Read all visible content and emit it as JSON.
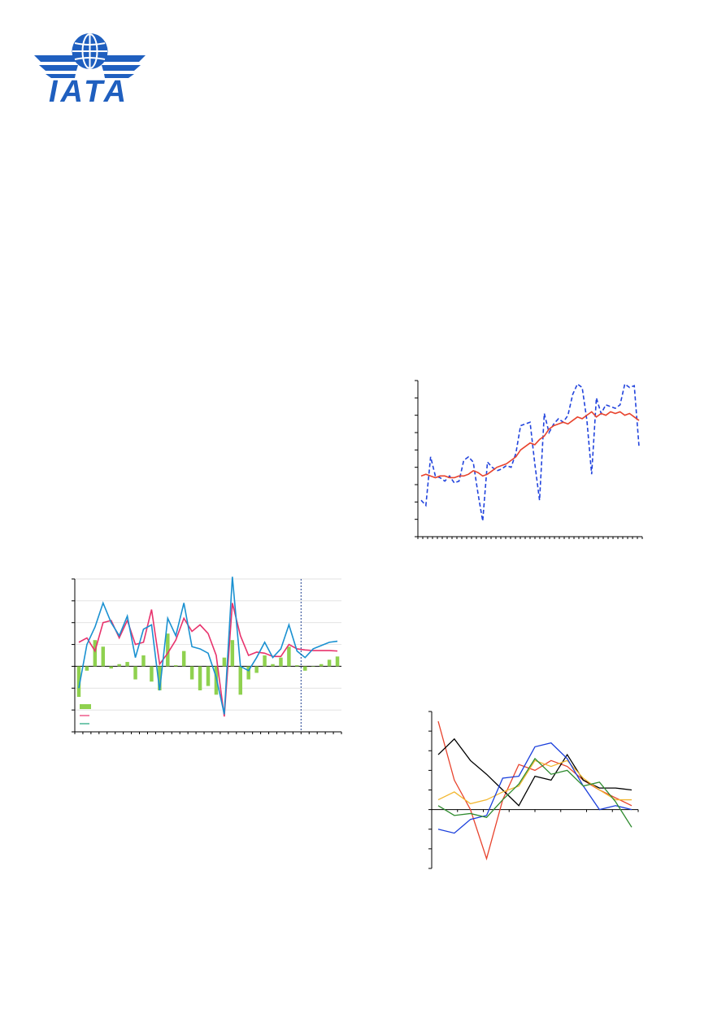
{
  "logo": {
    "text": "IATA",
    "icon": "globe-wings-icon",
    "color": "#1f5fbf"
  },
  "colors": {
    "axis": "#000000",
    "grid": "#d9d9d9",
    "pink": "#e8336d",
    "cyan": "#1a91d1",
    "green_bar": "#8fd14f",
    "blue_dash": "#2244dd",
    "red": "#e8432d"
  },
  "chart_data": [
    {
      "type": "bar",
      "position": "bottom-left",
      "series": [
        {
          "kind": "bar",
          "color": "#8fd14f",
          "values": [
            -1.4,
            -0.2,
            1.2,
            0.9,
            -0.1,
            0.1,
            0.2,
            -0.6,
            0.5,
            -0.7,
            -1.1,
            1.5,
            0.05,
            0.7,
            -0.6,
            -1.1,
            -0.9,
            -1.3,
            0.4,
            1.2,
            -1.3,
            -0.6,
            -0.3,
            0.5,
            0.1,
            0.4,
            0.9,
            0.05,
            -0.2,
            0.0,
            0.1,
            0.3,
            0.45
          ]
        },
        {
          "kind": "line",
          "color": "#e8336d",
          "values": [
            1.1,
            1.3,
            0.7,
            2.0,
            2.1,
            1.3,
            2.1,
            1.0,
            1.1,
            2.6,
            0.1,
            0.6,
            1.2,
            2.2,
            1.6,
            1.9,
            1.5,
            0.5,
            -2.3,
            2.9,
            1.4,
            0.5,
            0.65,
            0.6,
            0.45,
            0.45,
            1.0,
            0.8,
            0.75,
            0.72,
            0.72,
            0.72,
            0.7
          ]
        },
        {
          "kind": "line",
          "color": "#1a91d1",
          "values": [
            -1.0,
            1.0,
            1.8,
            2.9,
            2.0,
            1.4,
            2.3,
            0.4,
            1.7,
            1.9,
            -1.1,
            2.2,
            1.4,
            2.9,
            0.9,
            0.8,
            0.6,
            -0.5,
            -2.2,
            4.1,
            0.0,
            -0.2,
            0.4,
            1.1,
            0.4,
            0.8,
            1.9,
            0.7,
            0.4,
            0.8,
            0.95,
            1.1,
            1.15
          ]
        }
      ],
      "ylim": [
        -3,
        4
      ],
      "forecast_divider_index": 27
    },
    {
      "type": "line",
      "position": "top-right",
      "series": [
        {
          "style": "dashed",
          "color": "#2244dd",
          "values": [
            2.1,
            1.8,
            4.6,
            3.5,
            3.4,
            3.2,
            3.5,
            3.1,
            3.2,
            4.4,
            4.6,
            4.3,
            2.5,
            0.9,
            4.3,
            4.0,
            3.8,
            3.9,
            4.1,
            4.0,
            4.8,
            6.4,
            6.5,
            6.6,
            4.2,
            2.1,
            7.1,
            6.0,
            6.5,
            6.8,
            6.6,
            7.0,
            8.2,
            8.8,
            8.6,
            6.7,
            3.6,
            8.0,
            7.1,
            7.6,
            7.5,
            7.4,
            7.6,
            8.8,
            8.6,
            8.7,
            5.2
          ]
        },
        {
          "style": "solid",
          "color": "#e8432d",
          "values": [
            3.5,
            3.6,
            3.5,
            3.4,
            3.5,
            3.5,
            3.4,
            3.4,
            3.5,
            3.5,
            3.6,
            3.8,
            3.7,
            3.5,
            3.6,
            3.8,
            4.0,
            4.1,
            4.2,
            4.4,
            4.6,
            5.0,
            5.2,
            5.4,
            5.3,
            5.6,
            5.8,
            6.2,
            6.4,
            6.5,
            6.6,
            6.5,
            6.7,
            6.9,
            6.8,
            7.0,
            7.2,
            6.9,
            7.1,
            7.0,
            7.2,
            7.1,
            7.2,
            7.0,
            7.1,
            6.9,
            6.7
          ]
        }
      ],
      "ylim": [
        0,
        9
      ]
    },
    {
      "type": "line",
      "position": "bottom-right",
      "series": [
        {
          "color": "#e8432d",
          "values": [
            4.5,
            1.5,
            0.0,
            -2.5,
            0.5,
            2.3,
            2.0,
            2.5,
            2.2,
            1.5,
            1.0,
            0.6,
            0.2
          ]
        },
        {
          "color": "#000000",
          "values": [
            2.8,
            3.6,
            2.5,
            1.8,
            1.0,
            0.2,
            1.7,
            1.5,
            2.8,
            1.5,
            1.1,
            1.1,
            1.0
          ]
        },
        {
          "color": "#f2b731",
          "values": [
            0.5,
            0.9,
            0.3,
            0.5,
            0.9,
            1.2,
            2.5,
            2.2,
            2.5,
            1.6,
            1.0,
            0.5,
            0.5
          ]
        },
        {
          "color": "#1a3fdc",
          "values": [
            -1.0,
            -1.2,
            -0.5,
            -0.3,
            1.6,
            1.7,
            3.2,
            3.4,
            2.6,
            1.2,
            0.0,
            0.2,
            0.0
          ]
        },
        {
          "color": "#2e8b2e",
          "values": [
            0.2,
            -0.3,
            -0.2,
            -0.4,
            0.5,
            1.3,
            2.6,
            1.8,
            2.0,
            1.2,
            1.4,
            0.4,
            -0.9
          ]
        }
      ],
      "ylim": [
        -3,
        5
      ]
    }
  ]
}
